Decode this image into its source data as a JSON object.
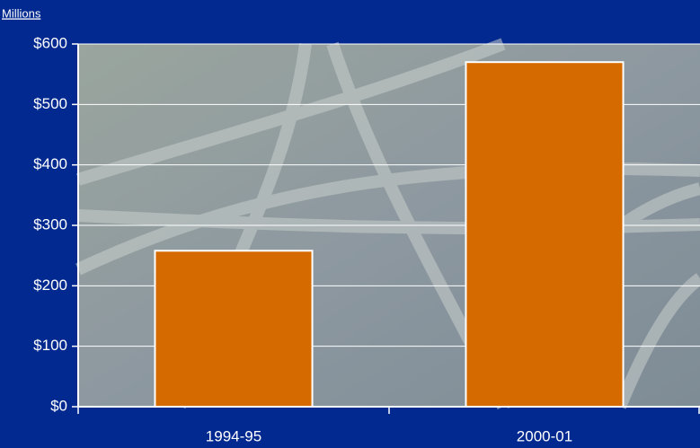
{
  "chart_data": {
    "type": "bar",
    "y_axis_label": "Millions",
    "categories": [
      "1994-95",
      "2000-01"
    ],
    "values": [
      258,
      570
    ],
    "color": "#d46a00",
    "ylim": [
      0,
      600
    ],
    "yticks": [
      {
        "value": 0,
        "label": "$0"
      },
      {
        "value": 100,
        "label": "$100"
      },
      {
        "value": 200,
        "label": "$200"
      },
      {
        "value": 300,
        "label": "$300"
      },
      {
        "value": 400,
        "label": "$400"
      },
      {
        "value": 500,
        "label": "$500"
      },
      {
        "value": 600,
        "label": "$600"
      }
    ],
    "grid": true
  }
}
